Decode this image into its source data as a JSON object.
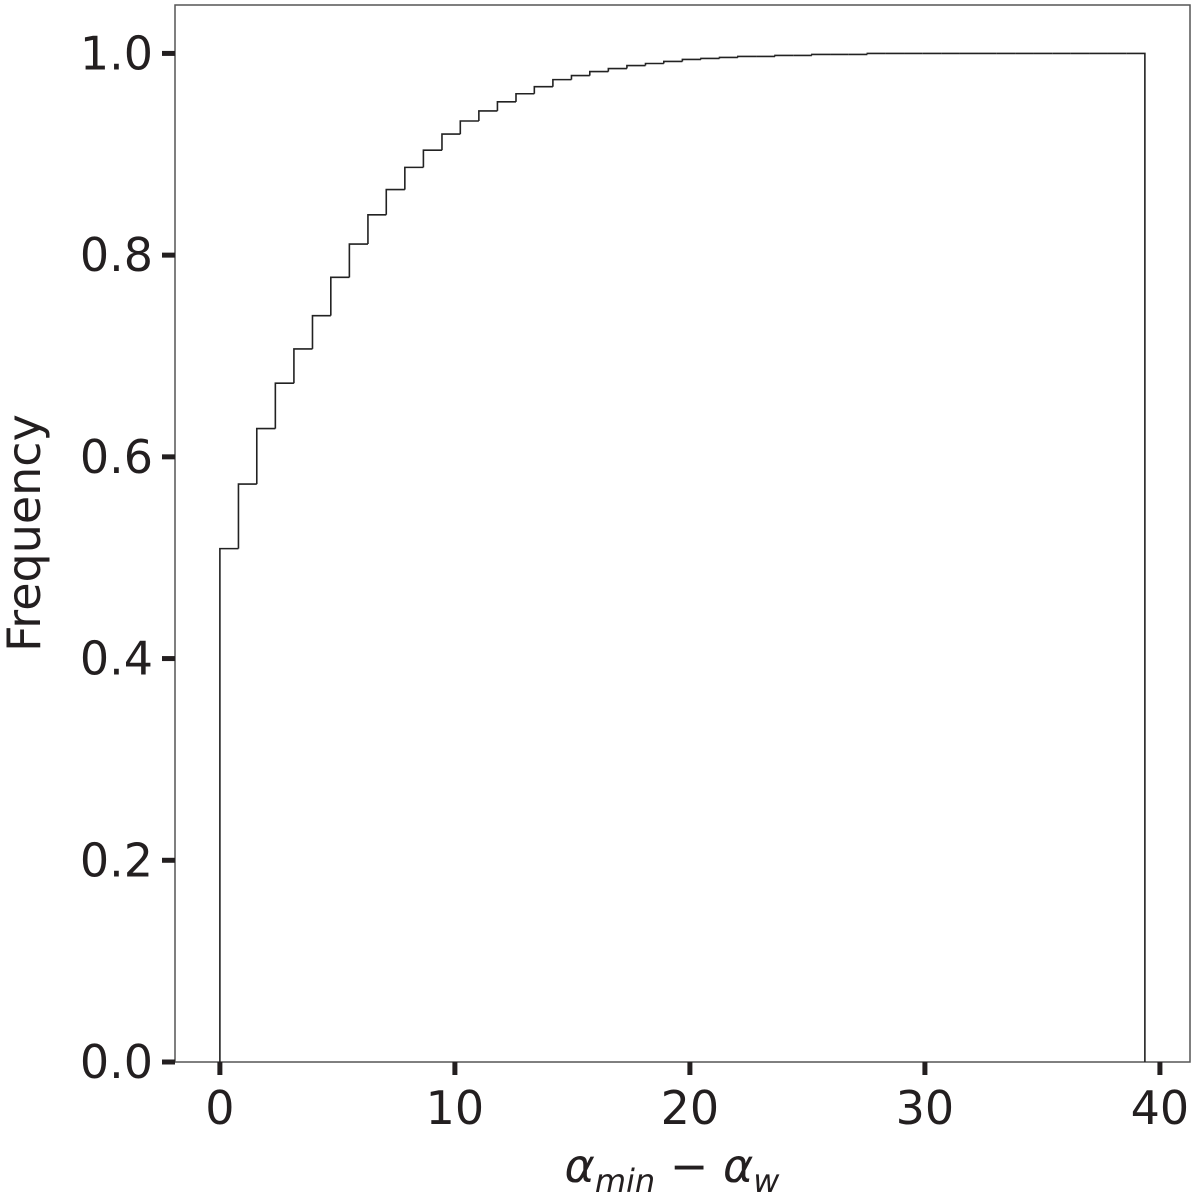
{
  "chart_data": {
    "type": "histogram",
    "ylabel": "Frequency",
    "xlabel": [
      "α",
      "min",
      " − α",
      "w"
    ],
    "bins": [
      0,
      0.79,
      1.57,
      2.36,
      3.15,
      3.94,
      4.72,
      5.51,
      6.3,
      7.08,
      7.87,
      8.66,
      9.45,
      10.23,
      11.02,
      11.81,
      12.6,
      13.38,
      14.17,
      14.96,
      15.74,
      16.53,
      17.32,
      18.11,
      18.89,
      19.68,
      20.47,
      21.26,
      22.04,
      22.83,
      23.62,
      24.4,
      25.19,
      25.98,
      26.76,
      27.55,
      28.34,
      29.13,
      29.91,
      30.7,
      31.49,
      32.28,
      33.06,
      33.85,
      34.64,
      35.42,
      36.21,
      37.0,
      37.79,
      38.57,
      39.36
    ],
    "values": [
      0.509,
      0.573,
      0.628,
      0.673,
      0.707,
      0.74,
      0.778,
      0.811,
      0.84,
      0.865,
      0.887,
      0.904,
      0.92,
      0.933,
      0.943,
      0.952,
      0.96,
      0.967,
      0.974,
      0.978,
      0.982,
      0.985,
      0.988,
      0.99,
      0.992,
      0.994,
      0.995,
      0.996,
      0.997,
      0.997,
      0.998,
      0.998,
      0.999,
      0.999,
      0.999,
      1.0,
      1.0,
      1.0,
      1.0,
      1.0,
      1.0,
      1.0,
      1.0,
      1.0,
      1.0,
      1.0,
      1.0,
      1.0,
      1.0,
      1.0
    ],
    "color": "#222222",
    "xlim": [
      -1.91,
      41.28
    ],
    "ylim": [
      0,
      1.048
    ],
    "xticks": [
      0,
      10,
      20,
      30,
      40
    ],
    "yticks": [
      {
        "value": 0,
        "label": "0.0"
      },
      {
        "value": 0.2,
        "label": "0.2"
      },
      {
        "value": 0.4,
        "label": "0.4"
      },
      {
        "value": 0.6,
        "label": "0.6"
      },
      {
        "value": 0.8,
        "label": "0.8"
      },
      {
        "value": 1.0,
        "label": "1.0"
      }
    ],
    "grid": false
  }
}
